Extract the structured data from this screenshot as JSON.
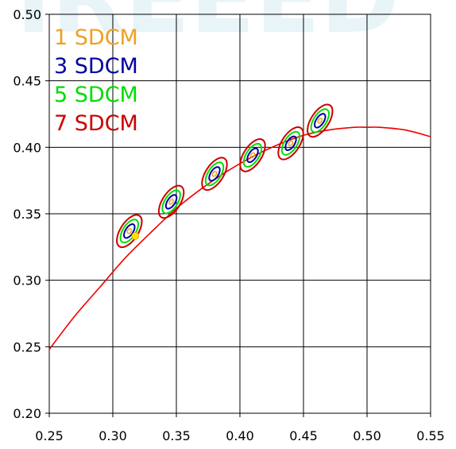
{
  "chart_data": {
    "type": "scatter",
    "title": "",
    "xlabel": "",
    "ylabel": "",
    "xlim": [
      0.25,
      0.55
    ],
    "ylim": [
      0.2,
      0.5
    ],
    "x_ticks": [
      "0.25",
      "0.30",
      "0.35",
      "0.40",
      "0.45",
      "0.50",
      "0.55"
    ],
    "y_ticks": [
      "0.20",
      "0.25",
      "0.30",
      "0.35",
      "0.40",
      "0.45",
      "0.50"
    ],
    "grid": true,
    "legend_placement": "top-left",
    "legend": [
      {
        "label": "1 SDCM",
        "color": "#f0a020"
      },
      {
        "label": "3 SDCM",
        "color": "#0000a0"
      },
      {
        "label": "5 SDCM",
        "color": "#00dd00"
      },
      {
        "label": "7 SDCM",
        "color": "#cc0000"
      }
    ],
    "planckian_locus": {
      "color": "#ee0000",
      "x": [
        0.25,
        0.27,
        0.29,
        0.31,
        0.33,
        0.35,
        0.37,
        0.39,
        0.41,
        0.43,
        0.45,
        0.47,
        0.49,
        0.5,
        0.51,
        0.53,
        0.55
      ],
      "y": [
        0.248,
        0.273,
        0.295,
        0.317,
        0.336,
        0.354,
        0.369,
        0.382,
        0.393,
        0.402,
        0.409,
        0.413,
        0.415,
        0.415,
        0.415,
        0.413,
        0.408
      ]
    },
    "ellipse_centers": [
      {
        "x": 0.313,
        "y": 0.337
      },
      {
        "x": 0.346,
        "y": 0.359
      },
      {
        "x": 0.38,
        "y": 0.38
      },
      {
        "x": 0.41,
        "y": 0.394
      },
      {
        "x": 0.44,
        "y": 0.403
      },
      {
        "x": 0.463,
        "y": 0.42
      }
    ],
    "ellipse_levels": [
      1,
      3,
      5,
      7
    ],
    "reference_point": {
      "x": 0.3177,
      "y": 0.3333,
      "color": "#ffe000"
    },
    "watermark": "IREEED"
  }
}
